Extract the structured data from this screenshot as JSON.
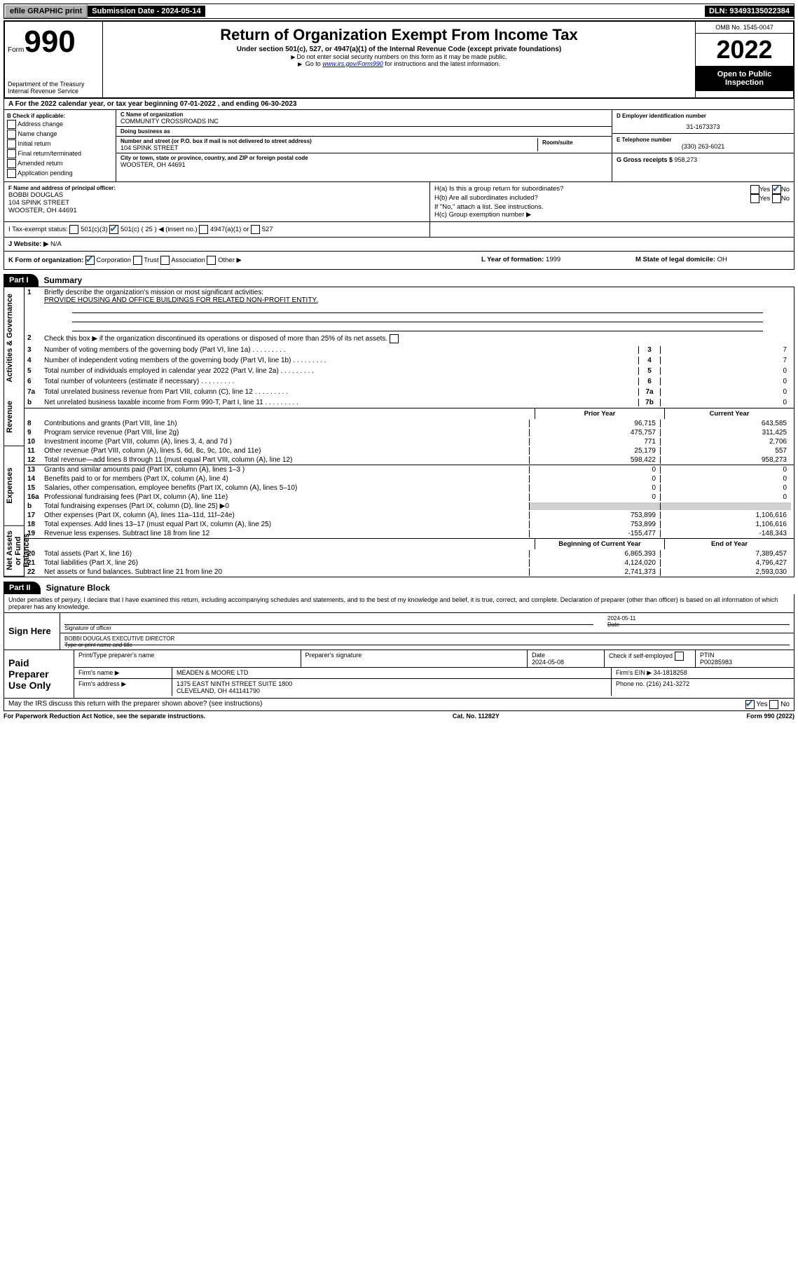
{
  "topbar": {
    "efile": "efile GRAPHIC print",
    "submission_label": "Submission Date - ",
    "submission_date": "2024-05-14",
    "dln_label": "DLN: ",
    "dln": "93493135022384"
  },
  "header": {
    "form_prefix": "Form",
    "form_number": "990",
    "dept": "Department of the Treasury",
    "irs": "Internal Revenue Service",
    "title": "Return of Organization Exempt From Income Tax",
    "sub": "Under section 501(c), 527, or 4947(a)(1) of the Internal Revenue Code (except private foundations)",
    "inst1": "Do not enter social security numbers on this form as it may be made public.",
    "inst2_pre": "Go to ",
    "inst2_link": "www.irs.gov/Form990",
    "inst2_post": " for instructions and the latest information.",
    "omb": "OMB No. 1545-0047",
    "year": "2022",
    "open_public": "Open to Public Inspection"
  },
  "sectionA": {
    "a_text_pre": "A For the 2022 calendar year, or tax year beginning ",
    "a_begin": "07-01-2022",
    "a_mid": "  , and ending ",
    "a_end": "06-30-2023"
  },
  "boxB": {
    "title": "B Check if applicable:",
    "opts": [
      "Address change",
      "Name change",
      "Initial return",
      "Final return/terminated",
      "Amended return",
      "Application pending"
    ]
  },
  "boxC": {
    "name_label": "C Name of organization",
    "name": "COMMUNITY CROSSROADS INC",
    "dba_label": "Doing business as",
    "dba": "",
    "addr_label": "Number and street (or P.O. box if mail is not delivered to street address)",
    "room_label": "Room/suite",
    "addr": "104 SPINK STREET",
    "city_label": "City or town, state or province, country, and ZIP or foreign postal code",
    "city": "WOOSTER, OH  44691"
  },
  "boxD": {
    "ein_label": "D Employer identification number",
    "ein": "31-1673373",
    "phone_label": "E Telephone number",
    "phone": "(330) 263-6021",
    "gross_label": "G Gross receipts $ ",
    "gross": "958,273"
  },
  "boxF": {
    "label": "F Name and address of principal officer:",
    "name": "BOBBI DOUGLAS",
    "addr1": "104 SPINK STREET",
    "addr2": "WOOSTER, OH  44691"
  },
  "boxH": {
    "ha_label": "H(a)  Is this a group return for subordinates?",
    "hb_label": "H(b)  Are all subordinates included?",
    "hb_note": "If \"No,\" attach a list. See instructions.",
    "hc_label": "H(c)  Group exemption number ▶",
    "yes": "Yes",
    "no": "No"
  },
  "boxI": {
    "label": "I      Tax-exempt status:",
    "c3": "501(c)(3)",
    "c": "501(c) ( 25 ) ◀ (insert no.)",
    "a4947": "4947(a)(1) or",
    "s527": "527"
  },
  "boxJ": {
    "label": "J     Website: ▶",
    "value": "N/A"
  },
  "boxK": {
    "label": "K Form of organization:",
    "corp": "Corporation",
    "trust": "Trust",
    "assoc": "Association",
    "other": "Other ▶"
  },
  "boxL": {
    "label": "L Year of formation: ",
    "value": "1999"
  },
  "boxM": {
    "label": "M State of legal domicile: ",
    "value": "OH"
  },
  "part1": {
    "tab": "Part I",
    "title": "Summary",
    "line1_label": "Briefly describe the organization's mission or most significant activities:",
    "mission": "PROVIDE HOUSING AND OFFICE BUILDINGS FOR RELATED NON-PROFIT ENTITY.",
    "line2": "Check this box ▶      if the organization discontinued its operations or disposed of more than 25% of its net assets.",
    "lines_single": [
      {
        "n": "3",
        "d": "Number of voting members of the governing body (Part VI, line 1a)",
        "box": "3",
        "val": "7"
      },
      {
        "n": "4",
        "d": "Number of independent voting members of the governing body (Part VI, line 1b)",
        "box": "4",
        "val": "7"
      },
      {
        "n": "5",
        "d": "Total number of individuals employed in calendar year 2022 (Part V, line 2a)",
        "box": "5",
        "val": "0"
      },
      {
        "n": "6",
        "d": "Total number of volunteers (estimate if necessary)",
        "box": "6",
        "val": "0"
      },
      {
        "n": "7a",
        "d": "Total unrelated business revenue from Part VIII, column (C), line 12",
        "box": "7a",
        "val": "0"
      },
      {
        "n": "b",
        "d": "Net unrelated business taxable income from Form 990-T, Part I, line 11",
        "box": "7b",
        "val": "0"
      }
    ],
    "col_headers": {
      "prior": "Prior Year",
      "current": "Current Year",
      "boy": "Beginning of Current Year",
      "eoy": "End of Year"
    },
    "revenue": [
      {
        "n": "8",
        "d": "Contributions and grants (Part VIII, line 1h)",
        "p": "96,715",
        "c": "643,585"
      },
      {
        "n": "9",
        "d": "Program service revenue (Part VIII, line 2g)",
        "p": "475,757",
        "c": "311,425"
      },
      {
        "n": "10",
        "d": "Investment income (Part VIII, column (A), lines 3, 4, and 7d )",
        "p": "771",
        "c": "2,706"
      },
      {
        "n": "11",
        "d": "Other revenue (Part VIII, column (A), lines 5, 6d, 8c, 9c, 10c, and 11e)",
        "p": "25,179",
        "c": "557"
      },
      {
        "n": "12",
        "d": "Total revenue—add lines 8 through 11 (must equal Part VIII, column (A), line 12)",
        "p": "598,422",
        "c": "958,273"
      }
    ],
    "expenses": [
      {
        "n": "13",
        "d": "Grants and similar amounts paid (Part IX, column (A), lines 1–3 )",
        "p": "0",
        "c": "0"
      },
      {
        "n": "14",
        "d": "Benefits paid to or for members (Part IX, column (A), line 4)",
        "p": "0",
        "c": "0"
      },
      {
        "n": "15",
        "d": "Salaries, other compensation, employee benefits (Part IX, column (A), lines 5–10)",
        "p": "0",
        "c": "0"
      },
      {
        "n": "16a",
        "d": "Professional fundraising fees (Part IX, column (A), line 11e)",
        "p": "0",
        "c": "0"
      },
      {
        "n": "b",
        "d": "Total fundraising expenses (Part IX, column (D), line 25) ▶0",
        "p": "",
        "c": "",
        "shade": true
      },
      {
        "n": "17",
        "d": "Other expenses (Part IX, column (A), lines 11a–11d, 11f–24e)",
        "p": "753,899",
        "c": "1,106,616"
      },
      {
        "n": "18",
        "d": "Total expenses. Add lines 13–17 (must equal Part IX, column (A), line 25)",
        "p": "753,899",
        "c": "1,106,616"
      },
      {
        "n": "19",
        "d": "Revenue less expenses. Subtract line 18 from line 12",
        "p": "-155,477",
        "c": "-148,343"
      }
    ],
    "netassets": [
      {
        "n": "20",
        "d": "Total assets (Part X, line 16)",
        "p": "6,865,393",
        "c": "7,389,457"
      },
      {
        "n": "21",
        "d": "Total liabilities (Part X, line 26)",
        "p": "4,124,020",
        "c": "4,796,427"
      },
      {
        "n": "22",
        "d": "Net assets or fund balances. Subtract line 21 from line 20",
        "p": "2,741,373",
        "c": "2,593,030"
      }
    ],
    "vlabels": {
      "gov": "Activities & Governance",
      "rev": "Revenue",
      "exp": "Expenses",
      "net": "Net Assets or Fund Balances"
    }
  },
  "part2": {
    "tab": "Part II",
    "title": "Signature Block",
    "penalty": "Under penalties of perjury, I declare that I have examined this return, including accompanying schedules and statements, and to the best of my knowledge and belief, it is true, correct, and complete. Declaration of preparer (other than officer) is based on all information of which preparer has any knowledge.",
    "sign_here": "Sign Here",
    "sig_officer": "Signature of officer",
    "sig_date_label": "Date",
    "sig_date": "2024-05-11",
    "officer_name": "BOBBI DOUGLAS  EXECUTIVE DIRECTOR",
    "type_name": "Type or print name and title",
    "paid": "Paid Preparer Use Only",
    "print_name": "Print/Type preparer's name",
    "prep_sig": "Preparer's signature",
    "date_label": "Date",
    "date": "2024-05-08",
    "check_if": "Check        if self-employed",
    "ptin_label": "PTIN",
    "ptin": "P00285983",
    "firm_name_label": "Firm's name     ▶",
    "firm_name": "MEADEN & MOORE LTD",
    "firm_ein_label": "Firm's EIN ▶",
    "firm_ein": "34-1818258",
    "firm_addr_label": "Firm's address ▶",
    "firm_addr1": "1375 EAST NINTH STREET SUITE 1800",
    "firm_addr2": "CLEVELAND, OH  441141790",
    "phone_label": "Phone no. ",
    "phone": "(216) 241-3272",
    "may_irs": "May the IRS discuss this return with the preparer shown above? (see instructions)",
    "yes": "Yes",
    "no": "No"
  },
  "footer": {
    "pra": "For Paperwork Reduction Act Notice, see the separate instructions.",
    "cat": "Cat. No. 11282Y",
    "form": "Form 990 (2022)"
  }
}
